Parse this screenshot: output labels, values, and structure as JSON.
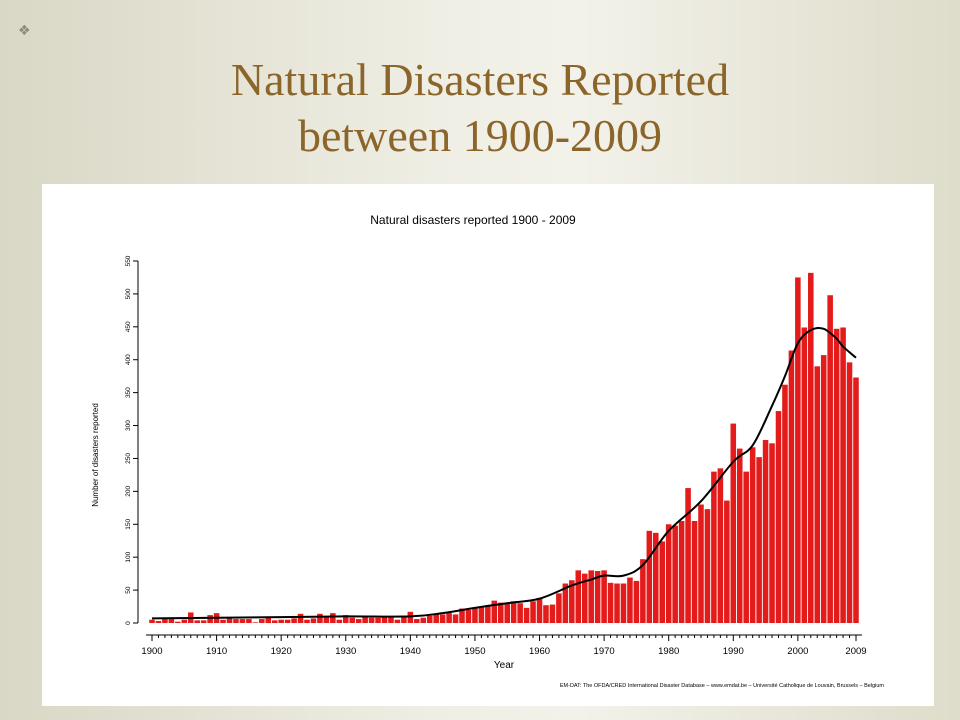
{
  "slide": {
    "title_line1": "Natural Disasters Reported",
    "title_line2": "between 1900-2009",
    "title_color": "#8b6529",
    "bullet_icon": "square-bullet-icon"
  },
  "chart_data": {
    "type": "bar",
    "title": "Natural disasters reported 1900 - 2009",
    "xlabel": "Year",
    "ylabel": "Number of disasters reported",
    "xlim": [
      1900,
      2009
    ],
    "ylim": [
      0,
      550
    ],
    "xticks": [
      1900,
      1910,
      1920,
      1930,
      1940,
      1950,
      1960,
      1970,
      1980,
      1990,
      2000,
      2009
    ],
    "yticks": [
      0,
      50,
      100,
      150,
      200,
      250,
      300,
      350,
      400,
      450,
      500,
      550
    ],
    "grid": false,
    "bar_color": "#e41b1b",
    "trend_color": "#000000",
    "source": "EM-DAT: The OFDA/CRED International Disaster Database – www.emdat.be – Université Catholique de Louvain, Brussels – Belgium",
    "series": [
      {
        "years": [
          1900,
          1901,
          1902,
          1903,
          1904,
          1905,
          1906,
          1907,
          1908,
          1909,
          1910,
          1911,
          1912,
          1913,
          1914,
          1915,
          1916,
          1917,
          1918,
          1919,
          1920,
          1921,
          1922,
          1923,
          1924,
          1925,
          1926,
          1927,
          1928,
          1929,
          1930,
          1931,
          1932,
          1933,
          1934,
          1935,
          1936,
          1937,
          1938,
          1939,
          1940,
          1941,
          1942,
          1943,
          1944,
          1945,
          1946,
          1947,
          1948,
          1949,
          1950,
          1951,
          1952,
          1953,
          1954,
          1955,
          1956,
          1957,
          1958,
          1959,
          1960,
          1961,
          1962,
          1963,
          1964,
          1965,
          1966,
          1967,
          1968,
          1969,
          1970,
          1971,
          1972,
          1973,
          1974,
          1975,
          1976,
          1977,
          1978,
          1979,
          1980,
          1981,
          1982,
          1983,
          1984,
          1985,
          1986,
          1987,
          1988,
          1989,
          1990,
          1991,
          1992,
          1993,
          1994,
          1995,
          1996,
          1997,
          1998,
          1999,
          2000,
          2001,
          2002,
          2003,
          2004,
          2005,
          2006,
          2007,
          2008,
          2009
        ],
        "values": [
          5,
          3,
          6,
          6,
          2,
          5,
          16,
          4,
          4,
          12,
          15,
          5,
          7,
          6,
          6,
          6,
          1,
          6,
          8,
          4,
          5,
          5,
          7,
          14,
          5,
          7,
          14,
          10,
          15,
          5,
          12,
          8,
          6,
          10,
          8,
          8,
          10,
          9,
          5,
          10,
          17,
          6,
          8,
          11,
          13,
          13,
          15,
          13,
          22,
          20,
          22,
          25,
          27,
          34,
          31,
          30,
          33,
          30,
          23,
          33,
          38,
          27,
          28,
          45,
          60,
          65,
          80,
          75,
          80,
          79,
          80,
          61,
          60,
          60,
          69,
          64,
          97,
          140,
          137,
          124,
          150,
          148,
          155,
          205,
          155,
          180,
          173,
          230,
          235,
          186,
          303,
          265,
          230,
          267,
          252,
          278,
          273,
          322,
          362,
          414,
          525,
          449,
          532,
          390,
          407,
          498,
          447,
          449,
          396,
          373
        ]
      }
    ],
    "trend": {
      "years": [
        1900,
        1910,
        1920,
        1930,
        1940,
        1945,
        1950,
        1955,
        1960,
        1965,
        1968,
        1970,
        1973,
        1976,
        1980,
        1985,
        1990,
        1993,
        1996,
        1998,
        2000,
        2002,
        2004,
        2006,
        2007,
        2009
      ],
      "values": [
        7,
        8,
        9,
        10,
        10,
        15,
        23,
        30,
        37,
        57,
        66,
        72,
        72,
        88,
        140,
        185,
        245,
        270,
        330,
        375,
        425,
        445,
        447,
        432,
        420,
        403
      ]
    }
  }
}
